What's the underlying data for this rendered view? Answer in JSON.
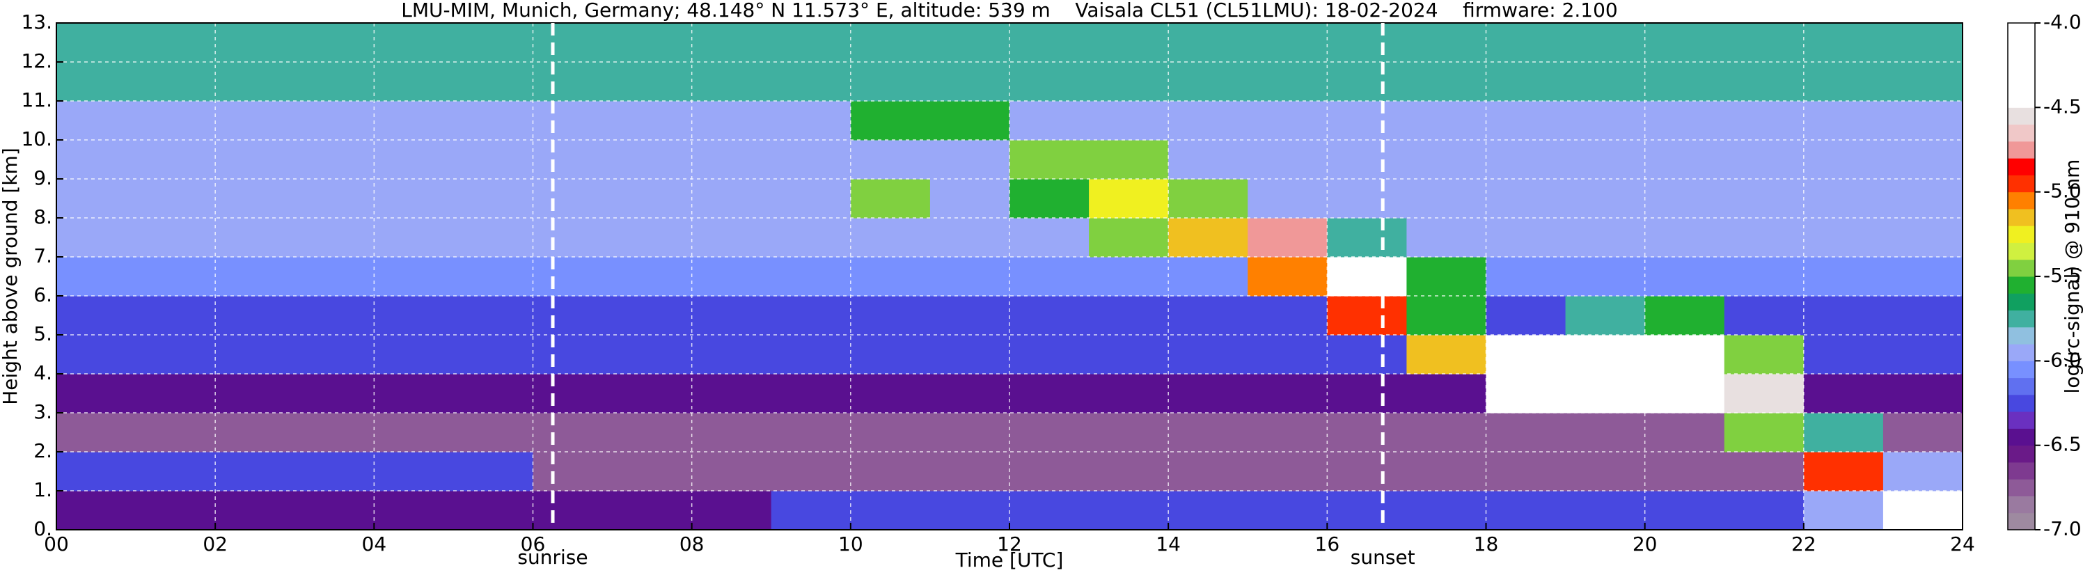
{
  "chart_data": {
    "type": "heatmap",
    "title": "LMU-MIM, Munich, Germany; 48.148° N 11.573° E, altitude: 539 m    Vaisala CL51 (CL51LMU): 18-02-2024    firmware: 2.100",
    "xlabel": "Time [UTC]",
    "ylabel": "Height above ground [km]",
    "xlim": [
      0,
      24
    ],
    "ylim": [
      0,
      13
    ],
    "xticks": [
      {
        "value": 0,
        "label": "00"
      },
      {
        "value": 2,
        "label": "02"
      },
      {
        "value": 4,
        "label": "04"
      },
      {
        "value": 6,
        "label": "06"
      },
      {
        "value": 8,
        "label": "08"
      },
      10,
      12,
      14,
      16,
      18,
      20,
      22,
      24
    ],
    "yticks": [
      {
        "value": 0,
        "label": "0."
      },
      {
        "value": 1,
        "label": "1."
      },
      {
        "value": 2,
        "label": "2."
      },
      {
        "value": 3,
        "label": "3."
      },
      {
        "value": 4,
        "label": "4."
      },
      {
        "value": 5,
        "label": "5."
      },
      {
        "value": 6,
        "label": "6."
      },
      {
        "value": 7,
        "label": "7."
      },
      {
        "value": 8,
        "label": "8."
      },
      {
        "value": 9,
        "label": "9."
      },
      {
        "value": 10,
        "label": "10."
      },
      {
        "value": 11,
        "label": "11."
      },
      {
        "value": 12,
        "label": "12."
      },
      {
        "value": 13,
        "label": "13."
      }
    ],
    "grid": true,
    "xbins": [
      0,
      1,
      2,
      3,
      4,
      5,
      6,
      7,
      8,
      9,
      10,
      11,
      12,
      13,
      14,
      15,
      16,
      17,
      18,
      19,
      20,
      21,
      22,
      23,
      24
    ],
    "ybins": [
      0,
      1,
      2,
      3,
      4,
      5,
      6,
      7,
      8,
      9,
      10,
      11,
      12,
      13
    ],
    "z": [
      [
        -6.5,
        -6.5,
        -6.5,
        -6.5,
        -6.5,
        -6.5,
        -6.5,
        -6.5,
        -6.5,
        -6.2,
        -6.2,
        -6.2,
        -6.2,
        -6.2,
        -6.2,
        -6.2,
        -6.2,
        -6.2,
        -6.2,
        -6.2,
        -6.2,
        -6.2,
        -6.0,
        -4.2
      ],
      [
        -6.2,
        -6.2,
        -6.2,
        -6.2,
        -6.2,
        -6.2,
        -6.8,
        -6.8,
        -6.8,
        -6.8,
        -6.8,
        -6.8,
        -6.8,
        -6.8,
        -6.8,
        -6.8,
        -6.8,
        -6.8,
        -6.8,
        -6.8,
        -6.8,
        -6.8,
        -5.0,
        -6.0
      ],
      [
        -6.7,
        -6.7,
        -6.7,
        -6.7,
        -6.7,
        -6.7,
        -6.7,
        -6.7,
        -6.7,
        -6.7,
        -6.7,
        -6.7,
        -6.7,
        -6.7,
        -6.7,
        -6.7,
        -6.7,
        -6.7,
        -6.7,
        -6.7,
        -6.7,
        -5.5,
        -5.8,
        -6.7
      ],
      [
        -6.5,
        -6.5,
        -6.5,
        -6.5,
        -6.5,
        -6.5,
        -6.5,
        -6.5,
        -6.5,
        -6.5,
        -6.5,
        -6.5,
        -6.5,
        -6.5,
        -6.5,
        -6.5,
        -6.5,
        -6.5,
        -4.2,
        -4.2,
        -4.2,
        -4.6,
        -6.5,
        -6.5
      ],
      [
        -6.3,
        -6.3,
        -6.3,
        -6.3,
        -6.3,
        -6.3,
        -6.3,
        -6.3,
        -6.3,
        -6.3,
        -6.3,
        -6.3,
        -6.3,
        -6.3,
        -6.3,
        -6.3,
        -6.3,
        -5.2,
        -4.4,
        -4.3,
        -4.3,
        -5.4,
        -6.3,
        -6.3
      ],
      [
        -6.2,
        -6.2,
        -6.2,
        -6.2,
        -6.2,
        -6.2,
        -6.2,
        -6.2,
        -6.2,
        -6.2,
        -6.2,
        -6.2,
        -6.2,
        -6.2,
        -6.2,
        -6.2,
        -5.0,
        -5.6,
        -6.2,
        -5.7,
        -5.6,
        -6.2,
        -6.2,
        -6.2
      ],
      [
        -6.1,
        -6.1,
        -6.1,
        -6.1,
        -6.1,
        -6.1,
        -6.1,
        -6.1,
        -6.1,
        -6.1,
        -6.1,
        -6.1,
        -6.1,
        -6.1,
        -6.1,
        -5.1,
        -4.3,
        -5.6,
        -6.1,
        -6.1,
        -6.1,
        -6.1,
        -6.1,
        -6.1
      ],
      [
        -6.0,
        -6.0,
        -6.0,
        -6.0,
        -6.0,
        -6.0,
        -6.0,
        -6.0,
        -6.0,
        -6.0,
        -6.0,
        -6.0,
        -6.0,
        -5.5,
        -5.2,
        -4.8,
        -5.7,
        -6.0,
        -6.0,
        -6.0,
        -6.0,
        -6.0,
        -6.0,
        -6.0
      ],
      [
        -6.0,
        -6.0,
        -6.0,
        -6.0,
        -6.0,
        -6.0,
        -6.0,
        -6.0,
        -6.0,
        -6.0,
        -5.5,
        -6.0,
        -5.6,
        -5.3,
        -5.4,
        -6.0,
        -6.0,
        -6.0,
        -6.0,
        -6.0,
        -6.0,
        -6.0,
        -6.0,
        -6.0
      ],
      [
        -5.9,
        -5.9,
        -5.9,
        -5.9,
        -5.9,
        -5.9,
        -5.9,
        -5.9,
        -5.9,
        -5.9,
        -5.9,
        -5.9,
        -5.4,
        -5.5,
        -5.9,
        -5.9,
        -5.9,
        -5.9,
        -5.9,
        -5.9,
        -5.9,
        -5.9,
        -5.9,
        -5.9
      ],
      [
        -5.9,
        -5.9,
        -5.9,
        -5.9,
        -5.9,
        -5.9,
        -5.9,
        -5.9,
        -5.9,
        -5.9,
        -5.6,
        -5.6,
        -5.9,
        -5.9,
        -5.9,
        -5.9,
        -5.9,
        -5.9,
        -5.9,
        -5.9,
        -5.9,
        -5.9,
        -5.9,
        -5.9
      ],
      [
        -5.8,
        -5.8,
        -5.8,
        -5.8,
        -5.8,
        -5.8,
        -5.8,
        -5.8,
        -5.8,
        -5.8,
        -5.8,
        -5.8,
        -5.8,
        -5.8,
        -5.8,
        -5.8,
        -5.8,
        -5.8,
        -5.8,
        -5.8,
        -5.8,
        -5.8,
        -5.8,
        -5.8
      ],
      [
        -5.8,
        -5.8,
        -5.8,
        -5.8,
        -5.8,
        -5.8,
        -5.8,
        -5.8,
        -5.8,
        -5.8,
        -5.8,
        -5.8,
        -5.8,
        -5.8,
        -5.8,
        -5.8,
        -5.8,
        -5.8,
        -5.8,
        -5.8,
        -5.8,
        -5.8,
        -5.8,
        -5.8
      ]
    ],
    "annotations": [
      {
        "text": "sunrise",
        "x": 6.25
      },
      {
        "text": "sunset",
        "x": 16.7
      }
    ],
    "colorbar": {
      "label": "log(rc-signal) @ 910 nm",
      "lim": [
        -7.0,
        -4.0
      ],
      "ticks": [
        {
          "value": -4.0,
          "label": "-4.0"
        },
        -4.5,
        {
          "value": -5.0,
          "label": "-5.0"
        },
        -5.5,
        {
          "value": -6.0,
          "label": "-6.0"
        },
        -6.5,
        {
          "value": -7.0,
          "label": "-7.0"
        }
      ],
      "colors": [
        "#9e8aa0",
        "#9a7aa0",
        "#8e5a98",
        "#7e3a90",
        "#6a1a88",
        "#5a1090",
        "#6a30c0",
        "#4848e0",
        "#6070f0",
        "#7890ff",
        "#9aa8f8",
        "#90c0e0",
        "#40b0a0",
        "#10a060",
        "#20b030",
        "#80d040",
        "#d0f040",
        "#f0f020",
        "#f0c020",
        "#ff8000",
        "#ff3000",
        "#ff0000",
        "#f09898",
        "#f0c8c8",
        "#e8e0e0",
        "#ffffff",
        "#ffffff",
        "#ffffff",
        "#ffffff",
        "#ffffff"
      ]
    }
  }
}
